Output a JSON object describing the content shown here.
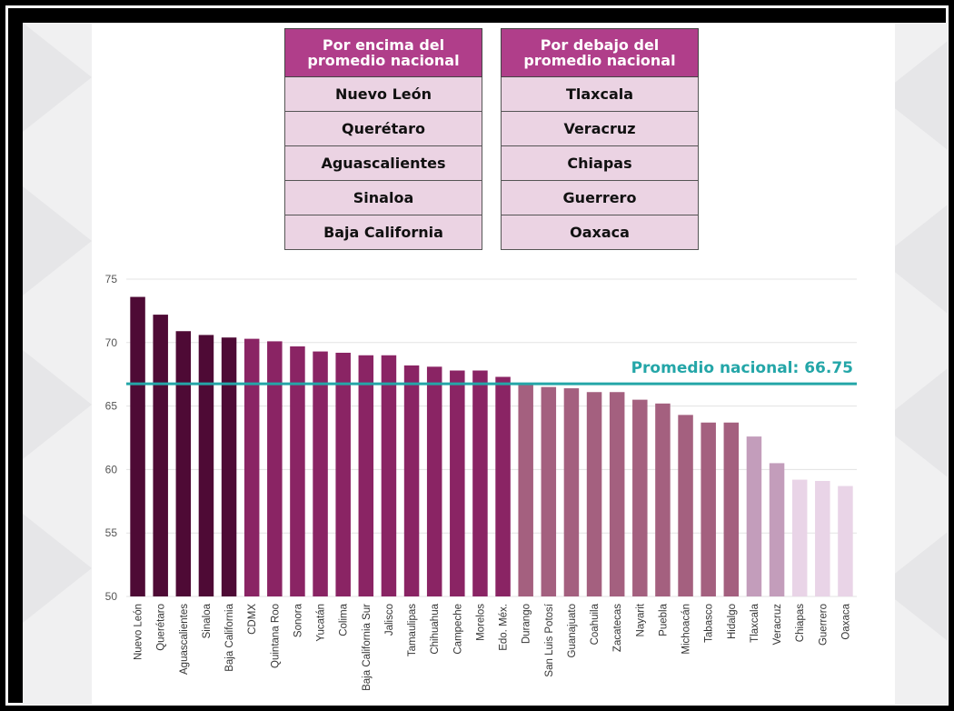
{
  "tables": {
    "above": {
      "header": "Por encima del promedio nacional",
      "rows": [
        "Nuevo León",
        "Querétaro",
        "Aguascalientes",
        "Sinaloa",
        "Baja California"
      ]
    },
    "below": {
      "header": "Por debajo del promedio nacional",
      "rows": [
        "Tlaxcala",
        "Veracruz",
        "Chiapas",
        "Guerrero",
        "Oaxaca"
      ]
    }
  },
  "chart_data": {
    "type": "bar",
    "title": "",
    "xlabel": "",
    "ylabel": "",
    "ylim": [
      50,
      75
    ],
    "yticks": [
      50,
      55,
      60,
      65,
      70,
      75
    ],
    "grid": true,
    "categories": [
      "Nuevo León",
      "Querétaro",
      "Aguascalientes",
      "Sinaloa",
      "Baja California",
      "CDMX",
      "Quintana Roo",
      "Sonora",
      "Yucatán",
      "Colima",
      "Baja California Sur",
      "Jalisco",
      "Tamaulipas",
      "Chihuahua",
      "Campeche",
      "Morelos",
      "Edo. Méx.",
      "Durango",
      "San Luis Potosí",
      "Guanajuato",
      "Coahuila",
      "Zacatecas",
      "Nayarit",
      "Puebla",
      "Michoacán",
      "Tabasco",
      "Hidalgo",
      "Tlaxcala",
      "Veracruz",
      "Chiapas",
      "Guerrero",
      "Oaxaca"
    ],
    "values": [
      73.6,
      72.2,
      70.9,
      70.6,
      70.4,
      70.3,
      70.1,
      69.7,
      69.3,
      69.2,
      69.0,
      69.0,
      68.2,
      68.1,
      67.8,
      67.8,
      67.3,
      66.8,
      66.5,
      66.4,
      66.1,
      66.1,
      65.5,
      65.2,
      64.3,
      63.7,
      63.7,
      62.6,
      60.5,
      59.2,
      59.1,
      58.7
    ],
    "bar_colors": [
      "#4e0a35",
      "#4e0a35",
      "#4e0a35",
      "#4e0a35",
      "#4e0a35",
      "#8a2464",
      "#8a2464",
      "#8a2464",
      "#8a2464",
      "#8a2464",
      "#8a2464",
      "#8a2464",
      "#8a2464",
      "#8a2464",
      "#8a2464",
      "#8a2464",
      "#8a2464",
      "#a4607f",
      "#a4607f",
      "#a4607f",
      "#a4607f",
      "#a4607f",
      "#a4607f",
      "#a4607f",
      "#a4607f",
      "#a4607f",
      "#a4607f",
      "#c39dbb",
      "#c39dbb",
      "#e9d4e7",
      "#e9d4e7",
      "#e9d4e7"
    ],
    "reference_line": {
      "label": "Promedio nacional: 66.75",
      "value": 66.75,
      "color": "#24a6a8"
    }
  }
}
